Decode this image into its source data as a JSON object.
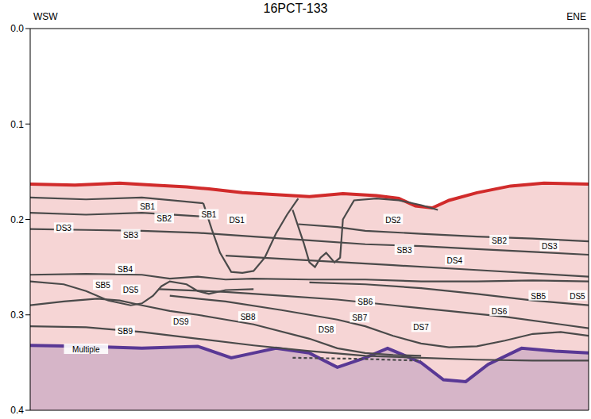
{
  "chart_data": {
    "type": "line",
    "title": "16PCT-133",
    "direction_labels": [
      "WSW",
      "ENE"
    ],
    "xlim": [
      0,
      100
    ],
    "ylim": [
      0,
      0.4
    ],
    "yticks": [
      {
        "value": 0,
        "label": "0.0"
      },
      0.1,
      0.2,
      0.3,
      0.4
    ],
    "tick_labels": "y",
    "series": [
      {
        "type": "area",
        "color": "#3b3bb0",
        "x": [
          0,
          10,
          20,
          30,
          36,
          40,
          44,
          50,
          55,
          60,
          64,
          70,
          74,
          78,
          82,
          88,
          94,
          100
        ],
        "values": [
          0.332,
          0.333,
          0.335,
          0.333,
          0.345,
          0.34,
          0.335,
          0.34,
          0.355,
          0.345,
          0.335,
          0.35,
          0.368,
          0.37,
          0.352,
          0.335,
          0.338,
          0.34
        ]
      },
      {
        "type": "area",
        "color": "#d12b2b",
        "x": [
          0,
          8,
          16,
          22,
          28,
          32,
          38,
          44,
          50,
          56,
          62,
          66,
          69,
          72,
          75,
          80,
          86,
          92,
          100
        ],
        "values": [
          0.163,
          0.164,
          0.162,
          0.164,
          0.166,
          0.168,
          0.172,
          0.174,
          0.176,
          0.173,
          0.175,
          0.178,
          0.186,
          0.188,
          0.18,
          0.172,
          0.165,
          0.162,
          0.163
        ]
      },
      {
        "type": "line",
        "color": "#4a4a4a",
        "x": [
          0,
          10,
          20,
          31
        ],
        "values": [
          0.177,
          0.179,
          0.177,
          0.183
        ]
      },
      {
        "type": "line",
        "color": "#4a4a4a",
        "x": [
          0,
          10,
          20,
          31
        ],
        "values": [
          0.193,
          0.195,
          0.193,
          0.197
        ]
      },
      {
        "type": "line",
        "color": "#4a4a4a",
        "x": [
          0,
          10,
          20,
          30,
          40,
          50,
          60,
          70,
          80,
          90,
          100
        ],
        "values": [
          0.21,
          0.211,
          0.212,
          0.214,
          0.218,
          0.222,
          0.226,
          0.228,
          0.231,
          0.234,
          0.237
        ]
      },
      {
        "type": "line",
        "color": "#4a4a4a",
        "x": [
          31,
          32.5,
          34,
          36,
          38,
          40,
          42,
          44,
          46,
          48
        ],
        "values": [
          0.183,
          0.21,
          0.235,
          0.255,
          0.256,
          0.254,
          0.24,
          0.215,
          0.195,
          0.178
        ]
      },
      {
        "type": "line",
        "color": "#4a4a4a",
        "x": [
          47,
          49,
          50,
          51,
          52,
          53,
          54.5,
          55.5,
          56,
          58,
          62,
          66,
          70,
          73
        ],
        "values": [
          0.19,
          0.225,
          0.245,
          0.25,
          0.24,
          0.235,
          0.245,
          0.24,
          0.2,
          0.18,
          0.178,
          0.18,
          0.185,
          0.19
        ]
      },
      {
        "type": "line",
        "color": "#4a4a4a",
        "x": [
          48,
          55,
          60,
          70,
          80,
          90,
          100
        ],
        "values": [
          0.205,
          0.208,
          0.212,
          0.215,
          0.218,
          0.22,
          0.223
        ]
      },
      {
        "type": "line",
        "color": "#4a4a4a",
        "x": [
          35,
          50,
          65,
          80,
          100
        ],
        "values": [
          0.238,
          0.243,
          0.248,
          0.253,
          0.26
        ]
      },
      {
        "type": "line",
        "color": "#4a4a4a",
        "x": [
          0,
          10,
          20,
          25,
          30,
          35,
          40,
          50,
          60,
          70,
          80,
          90,
          100
        ],
        "values": [
          0.258,
          0.257,
          0.258,
          0.262,
          0.26,
          0.263,
          0.262,
          0.263,
          0.263,
          0.265,
          0.265,
          0.264,
          0.265
        ]
      },
      {
        "type": "line",
        "color": "#4a4a4a",
        "x": [
          0,
          6,
          10,
          14,
          18,
          20,
          22,
          23.5,
          25,
          28,
          30,
          32,
          35,
          40
        ],
        "values": [
          0.265,
          0.268,
          0.275,
          0.285,
          0.29,
          0.288,
          0.28,
          0.27,
          0.265,
          0.268,
          0.275,
          0.278,
          0.274,
          0.273
        ]
      },
      {
        "type": "line",
        "color": "#4a4a4a",
        "x": [
          50,
          60,
          70,
          80,
          90,
          100
        ],
        "values": [
          0.266,
          0.268,
          0.272,
          0.278,
          0.285,
          0.29
        ]
      },
      {
        "type": "line",
        "color": "#4a4a4a",
        "x": [
          23,
          35,
          45,
          55,
          65,
          75,
          85,
          95,
          100
        ],
        "values": [
          0.273,
          0.276,
          0.28,
          0.284,
          0.29,
          0.296,
          0.302,
          0.31,
          0.314
        ]
      },
      {
        "type": "line",
        "color": "#4a4a4a",
        "x": [
          25,
          35,
          45,
          55,
          60,
          65,
          70,
          75,
          80,
          85,
          90,
          95,
          100
        ],
        "values": [
          0.28,
          0.286,
          0.295,
          0.305,
          0.312,
          0.322,
          0.33,
          0.334,
          0.333,
          0.327,
          0.32,
          0.318,
          0.322
        ]
      },
      {
        "type": "line",
        "color": "#4a4a4a",
        "x": [
          0,
          6,
          12,
          16,
          20,
          25,
          30,
          35,
          40,
          50,
          55,
          60,
          65,
          70
        ],
        "values": [
          0.29,
          0.286,
          0.283,
          0.285,
          0.29,
          0.296,
          0.3,
          0.305,
          0.31,
          0.325,
          0.335,
          0.34,
          0.342,
          0.343
        ]
      },
      {
        "type": "line",
        "color": "#4a4a4a",
        "x": [
          0,
          10,
          20,
          30,
          40,
          50,
          60,
          70,
          80,
          90,
          100
        ],
        "values": [
          0.312,
          0.313,
          0.318,
          0.325,
          0.332,
          0.338,
          0.343,
          0.345,
          0.347,
          0.348,
          0.348
        ]
      },
      {
        "type": "line",
        "color": "#4a4a4a",
        "line_style": "dashed",
        "x": [
          47,
          58,
          70
        ],
        "values": [
          0.345,
          0.346,
          0.348
        ]
      }
    ],
    "annotations": [
      {
        "text": "SB1",
        "x": 21,
        "y": 0.186
      },
      {
        "text": "SB2",
        "x": 24,
        "y": 0.199
      },
      {
        "text": "SB1",
        "x": 32,
        "y": 0.195
      },
      {
        "text": "DS1",
        "x": 37,
        "y": 0.2
      },
      {
        "text": "DS2",
        "x": 65,
        "y": 0.2
      },
      {
        "text": "DS3",
        "x": 6,
        "y": 0.209
      },
      {
        "text": "SB3",
        "x": 18,
        "y": 0.216
      },
      {
        "text": "SB2",
        "x": 84,
        "y": 0.222
      },
      {
        "text": "DS3",
        "x": 93,
        "y": 0.228
      },
      {
        "text": "SB3",
        "x": 67,
        "y": 0.232
      },
      {
        "text": "DS4",
        "x": 76,
        "y": 0.243
      },
      {
        "text": "SB4",
        "x": 17,
        "y": 0.252
      },
      {
        "text": "SB5",
        "x": 13,
        "y": 0.269
      },
      {
        "text": "DS5",
        "x": 18,
        "y": 0.274
      },
      {
        "text": "SB5",
        "x": 91,
        "y": 0.28
      },
      {
        "text": "DS5",
        "x": 98,
        "y": 0.28
      },
      {
        "text": "SB6",
        "x": 60,
        "y": 0.286
      },
      {
        "text": "DS6",
        "x": 84,
        "y": 0.296
      },
      {
        "text": "SB8",
        "x": 39,
        "y": 0.302
      },
      {
        "text": "SB7",
        "x": 59,
        "y": 0.303
      },
      {
        "text": "DS9",
        "x": 27,
        "y": 0.307
      },
      {
        "text": "DS7",
        "x": 70,
        "y": 0.313
      },
      {
        "text": "DS8",
        "x": 53,
        "y": 0.315
      },
      {
        "text": "SB9",
        "x": 17,
        "y": 0.317
      },
      {
        "text": "Multiple",
        "x": 10,
        "y": 0.336
      }
    ]
  }
}
